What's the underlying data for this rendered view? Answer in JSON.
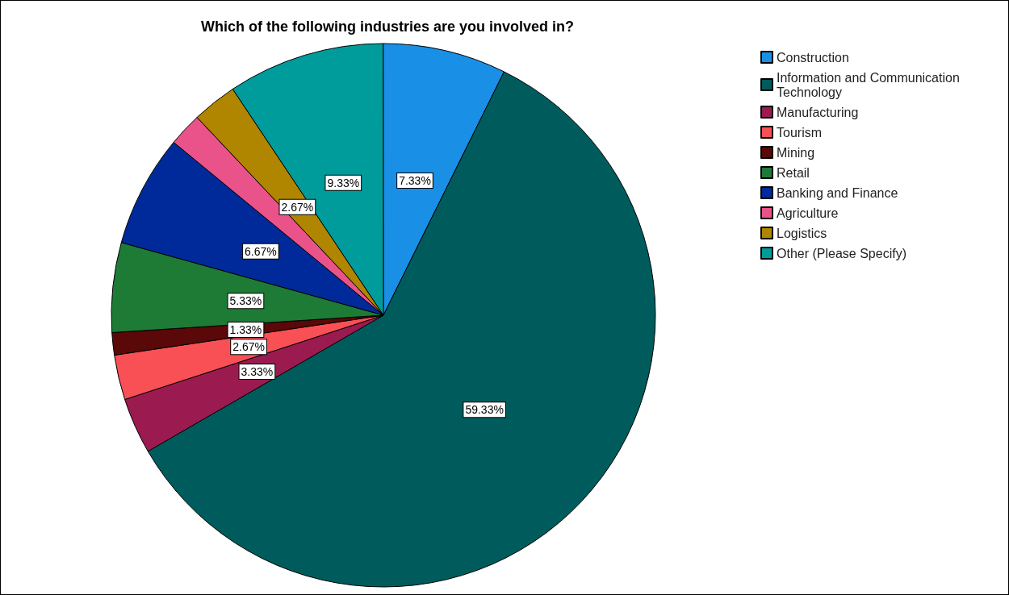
{
  "chart_data": {
    "type": "pie",
    "title": "Which of the following industries are you involved in?",
    "categories": [
      "Construction",
      "Information and Communication Technology",
      "Manufacturing",
      "Tourism",
      "Mining",
      "Retail",
      "Banking and Finance",
      "Agriculture",
      "Logistics",
      "Other (Please Specify)"
    ],
    "values": [
      7.33,
      59.33,
      3.33,
      2.67,
      1.33,
      5.33,
      6.67,
      2.0,
      2.67,
      9.33
    ],
    "value_labels": [
      "7.33%",
      "59.33%",
      "3.33%",
      "2.67%",
      "1.33%",
      "5.33%",
      "6.67%",
      null,
      "2.67%",
      "9.33%"
    ],
    "colors": [
      "#1a8fe6",
      "#005c5c",
      "#9b1b50",
      "#f95055",
      "#5a0808",
      "#1e7b36",
      "#002a99",
      "#ea538a",
      "#b08500",
      "#009b9b"
    ],
    "legend": "right"
  }
}
